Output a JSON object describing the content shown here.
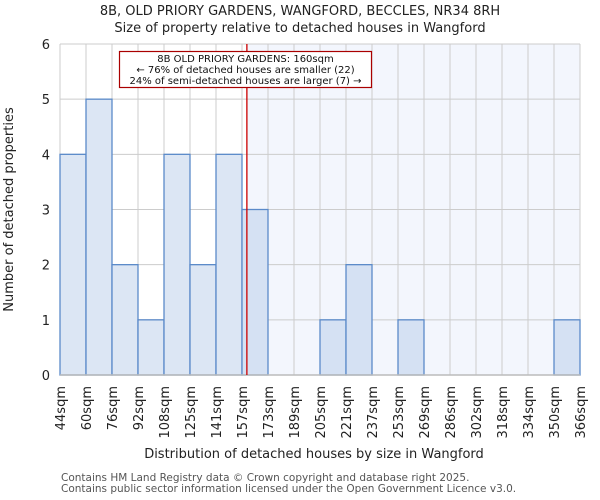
{
  "header": {
    "title": "8B, OLD PRIORY GARDENS, WANGFORD, BECCLES, NR34 8RH",
    "subtitle": "Size of property relative to detached houses in Wangford"
  },
  "footer": {
    "line1": "Contains HM Land Registry data © Crown copyright and database right 2025.",
    "line2": "Contains public sector information licensed under the Open Government Licence v3.0."
  },
  "colors": {
    "bar_fill": "#dce6f4",
    "bar_fill_right": "#d5e1f3",
    "bar_edge": "#5b8ac9",
    "highlight_bg": "#f3f6fd",
    "grid": "#cccccc",
    "marker": "#cc0000",
    "annotation_border": "#aa0000"
  },
  "chart_data": {
    "type": "bar",
    "title": "8B, OLD PRIORY GARDENS, WANGFORD, BECCLES, NR34 8RH",
    "subtitle": "Size of property relative to detached houses in Wangford",
    "xlabel": "Distribution of detached houses by size in Wangford",
    "ylabel": "Number of detached properties",
    "categories": [
      "44sqm",
      "60sqm",
      "76sqm",
      "92sqm",
      "108sqm",
      "125sqm",
      "141sqm",
      "157sqm",
      "173sqm",
      "189sqm",
      "205sqm",
      "221sqm",
      "237sqm",
      "253sqm",
      "269sqm",
      "286sqm",
      "302sqm",
      "318sqm",
      "334sqm",
      "350sqm",
      "366sqm"
    ],
    "bin_edges": [
      44,
      60,
      76,
      92,
      108,
      125,
      141,
      157,
      173,
      189,
      205,
      221,
      237,
      253,
      269,
      286,
      302,
      318,
      334,
      350,
      366
    ],
    "values": [
      4,
      5,
      2,
      1,
      4,
      2,
      4,
      3,
      0,
      0,
      1,
      2,
      0,
      1,
      0,
      0,
      0,
      0,
      0,
      1
    ],
    "ylim": [
      0,
      6
    ],
    "yticks": [
      0,
      1,
      2,
      3,
      4,
      5,
      6
    ],
    "grid": true,
    "marker": {
      "value": 160,
      "label": "8B OLD PRIORY GARDENS: 160sqm"
    },
    "annotation": {
      "line1": "8B OLD PRIORY GARDENS: 160sqm",
      "line2": "← 76% of detached houses are smaller (22)",
      "line3": "24% of semi-detached houses are larger (7) →"
    }
  }
}
